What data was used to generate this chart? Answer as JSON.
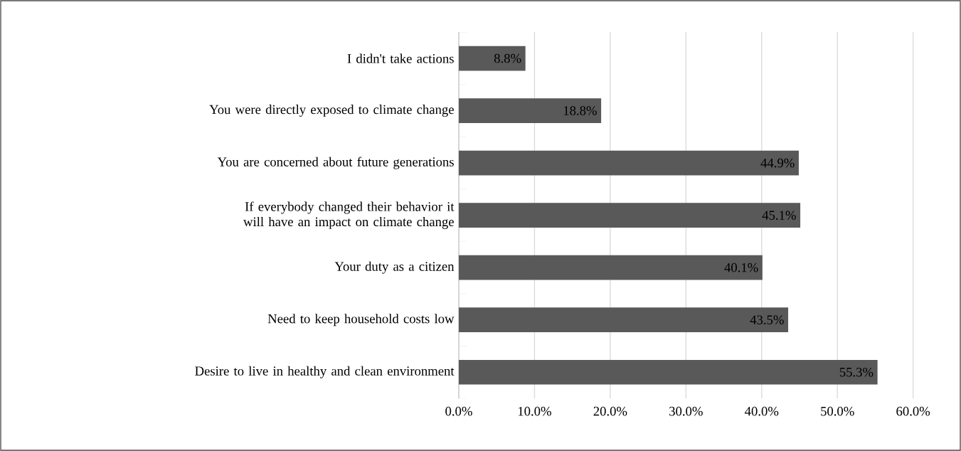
{
  "chart_data": {
    "type": "bar",
    "orientation": "horizontal",
    "categories": [
      "I didn't take actions",
      "You were directly exposed to climate change",
      "You are concerned about future generations",
      "If everybody changed their behavior it will have an impact on climate change",
      "Your duty as a citizen",
      "Need to keep household costs low",
      "Desire to live in healthy and clean environment"
    ],
    "values": [
      8.8,
      18.8,
      44.9,
      45.1,
      40.1,
      43.5,
      55.3
    ],
    "value_labels": [
      "8.8%",
      "18.8%",
      "44.9%",
      "45.1%",
      "40.1%",
      "43.5%",
      "55.3%"
    ],
    "color": "#595959",
    "xlim": [
      0,
      60
    ],
    "xticks": [
      {
        "value": 0,
        "label": "0.0%"
      },
      {
        "value": 10,
        "label": "10.0%"
      },
      {
        "value": 20,
        "label": "20.0%"
      },
      {
        "value": 30,
        "label": "30.0%"
      },
      {
        "value": 40,
        "label": "40.0%"
      },
      {
        "value": 50,
        "label": "50.0%"
      },
      {
        "value": 60,
        "label": "60.0%"
      }
    ],
    "grid": "x"
  }
}
